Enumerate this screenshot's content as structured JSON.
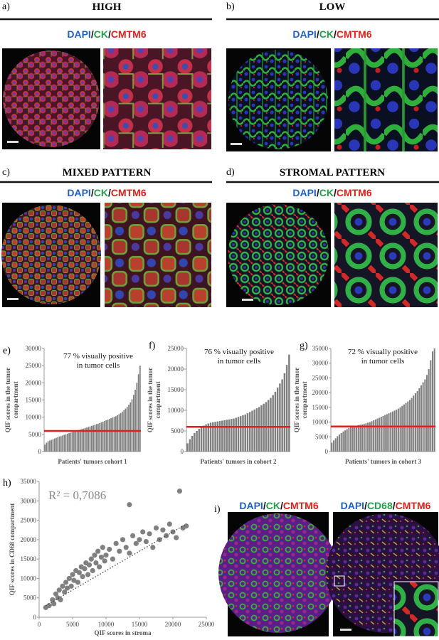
{
  "panels": [
    {
      "label": "a)",
      "title": "HIGH",
      "stain": [
        "DAPI",
        "/",
        "CK",
        "/",
        "CMTM6"
      ]
    },
    {
      "label": "b)",
      "title": "LOW",
      "stain": [
        "DAPI",
        "/",
        "CK",
        "/",
        "CMTM6"
      ]
    },
    {
      "label": "c)",
      "title": "MIXED PATTERN",
      "stain": [
        "DAPI",
        "/",
        "CK",
        "/",
        "CMTM6"
      ]
    },
    {
      "label": "d)",
      "title": "STROMAL PATTERN",
      "stain": [
        "DAPI",
        "/",
        "CK",
        "/",
        "CMTM6"
      ]
    }
  ],
  "panel_i": {
    "label": "i)",
    "stains": [
      [
        "DAPI",
        "/",
        "CK",
        "/",
        "CMTM6"
      ],
      [
        "DAPI",
        "/",
        "CD68",
        "/",
        "CMTM6"
      ]
    ]
  },
  "chart_data": [
    {
      "type": "bar",
      "label": "e)",
      "color": "#7f7f7f",
      "annotation": [
        "77 %  visually positive",
        "in tumor cells"
      ],
      "ylabel": [
        "QIF scores in the tumor",
        "compartment"
      ],
      "xlabel": "Patients' tumors cohort 1",
      "threshold": 6000,
      "threshold_color": "#e0201c",
      "ylim": [
        0,
        30000
      ],
      "yticks": [
        0,
        5000,
        10000,
        15000,
        20000,
        25000,
        30000
      ],
      "values": [
        2000,
        2600,
        3000,
        3200,
        3400,
        3600,
        3800,
        4000,
        4200,
        4400,
        4500,
        4700,
        4900,
        5000,
        5200,
        5400,
        5500,
        5700,
        5900,
        6000,
        6100,
        6300,
        6400,
        6600,
        6700,
        6900,
        7000,
        7200,
        7300,
        7500,
        7600,
        7800,
        8000,
        8100,
        8300,
        8500,
        8700,
        8900,
        9100,
        9300,
        9500,
        9700,
        9900,
        10100,
        10300,
        10600,
        10900,
        11200,
        11600,
        12000,
        12500,
        13000,
        13600,
        14300,
        15200,
        16500,
        18000,
        20000,
        22500,
        25000
      ]
    },
    {
      "type": "bar",
      "label": "f)",
      "color": "#7f7f7f",
      "annotation": [
        "76 % visually positive",
        "in tumor cells"
      ],
      "ylabel": [
        "QIF scores in the tumor",
        "compartment"
      ],
      "xlabel": "Patients' tumors in cohort 2",
      "threshold": 6000,
      "threshold_color": "#e0201c",
      "ylim": [
        0,
        25000
      ],
      "yticks": [
        0,
        5000,
        10000,
        15000,
        20000,
        25000
      ],
      "values": [
        2000,
        3000,
        3800,
        4500,
        5000,
        5500,
        6000,
        6300,
        6600,
        6800,
        7000,
        7100,
        7200,
        7300,
        7400,
        7500,
        7600,
        7700,
        7800,
        7900,
        8000,
        8200,
        8400,
        8600,
        8800,
        9000,
        9300,
        9600,
        9900,
        10200,
        10500,
        10800,
        11200,
        11600,
        12000,
        12500,
        13000,
        13700,
        14500,
        15500,
        16500,
        17500,
        19000,
        21000,
        23500
      ]
    },
    {
      "type": "bar",
      "label": "g)",
      "color": "#7f7f7f",
      "annotation": [
        "72 % visually positive",
        "in tumor cells"
      ],
      "ylabel": [
        "QIF scores in the tumor",
        "compartment"
      ],
      "xlabel": "Patients' tumors in cohort 3",
      "threshold": 8500,
      "threshold_color": "#e0201c",
      "ylim": [
        0,
        35000
      ],
      "yticks": [
        0,
        5000,
        10000,
        15000,
        20000,
        25000,
        30000,
        35000
      ],
      "values": [
        3000,
        3800,
        4500,
        5200,
        5800,
        6300,
        6800,
        7200,
        7600,
        8000,
        8300,
        8500,
        8700,
        8800,
        9000,
        9100,
        9200,
        9400,
        9600,
        9800,
        10000,
        10300,
        10600,
        10900,
        11200,
        11500,
        11800,
        12100,
        12400,
        12700,
        13000,
        13300,
        13600,
        13900,
        14200,
        14600,
        15000,
        15500,
        16000,
        16500,
        17000,
        17500,
        18200,
        19000,
        19800,
        20500,
        21500,
        22500,
        23500,
        24500,
        26000,
        28000,
        31000,
        34000,
        35000
      ]
    },
    {
      "type": "scatter",
      "label": "h)",
      "color": "#808080",
      "annotation": "R² = 0,7086",
      "ylabel": "QIF scores in CD68 compartment",
      "xlabel": "QIF scores in stroma",
      "trendline": {
        "x": [
          1000,
          22000
        ],
        "y": [
          3000,
          24000
        ]
      },
      "xlim": [
        0,
        25000
      ],
      "xticks": [
        0,
        5000,
        10000,
        15000,
        20000,
        25000
      ],
      "ylim": [
        0,
        35000
      ],
      "yticks": [
        0,
        5000,
        10000,
        15000,
        20000,
        25000,
        30000,
        35000
      ],
      "x": [
        1000,
        1500,
        2000,
        2200,
        2500,
        2800,
        3000,
        3200,
        3500,
        3800,
        4000,
        4200,
        4500,
        4800,
        5000,
        5200,
        5500,
        5800,
        6000,
        6300,
        6500,
        6800,
        7000,
        7300,
        7500,
        7800,
        8000,
        8300,
        8500,
        8800,
        9000,
        9300,
        9500,
        9800,
        10000,
        10500,
        11000,
        11500,
        12000,
        12500,
        13000,
        13500,
        14000,
        14500,
        15000,
        15500,
        16000,
        16500,
        17000,
        17500,
        18000,
        18500,
        19000,
        19500,
        20000,
        20500,
        21000,
        21500,
        22000,
        13500
      ],
      "y": [
        2500,
        3000,
        4500,
        3500,
        6000,
        5000,
        7000,
        4500,
        8000,
        6500,
        9000,
        7500,
        10000,
        8000,
        11000,
        9500,
        12000,
        9000,
        11500,
        13000,
        10500,
        12500,
        14000,
        11000,
        13500,
        15000,
        12000,
        16000,
        14000,
        17000,
        13000,
        15500,
        18000,
        14500,
        16000,
        17500,
        15000,
        19000,
        17000,
        20000,
        18000,
        16500,
        21000,
        19000,
        20000,
        22000,
        19500,
        21500,
        18000,
        23000,
        20000,
        22500,
        21000,
        24000,
        22000,
        20500,
        32500,
        23000,
        23500,
        29000
      ]
    }
  ]
}
